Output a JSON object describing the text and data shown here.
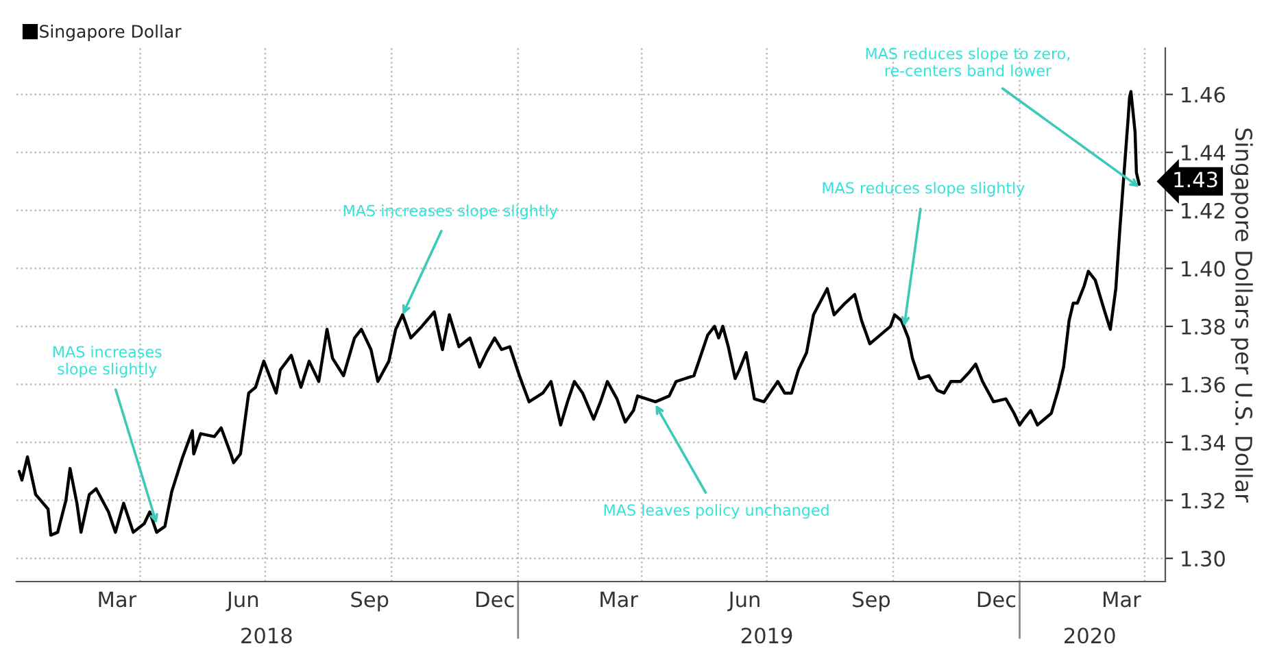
{
  "chart_data": {
    "type": "line",
    "x": [
      "2018-01-03",
      "2018-01-05",
      "2018-01-09",
      "2018-01-15",
      "2018-01-24",
      "2018-01-26",
      "2018-01-31",
      "2018-02-06",
      "2018-02-09",
      "2018-02-14",
      "2018-02-17",
      "2018-02-23",
      "2018-02-28",
      "2018-03-09",
      "2018-03-14",
      "2018-03-20",
      "2018-03-27",
      "2018-04-04",
      "2018-04-08",
      "2018-04-13",
      "2018-04-19",
      "2018-04-24",
      "2018-05-02",
      "2018-05-09",
      "2018-05-10",
      "2018-05-15",
      "2018-05-25",
      "2018-05-30",
      "2018-06-06",
      "2018-06-08",
      "2018-06-13",
      "2018-06-19",
      "2018-06-24",
      "2018-06-30",
      "2018-07-09",
      "2018-07-12",
      "2018-07-20",
      "2018-07-27",
      "2018-08-02",
      "2018-08-09",
      "2018-08-15",
      "2018-08-19",
      "2018-08-27",
      "2018-09-04",
      "2018-09-09",
      "2018-09-16",
      "2018-09-21",
      "2018-09-29",
      "2018-10-04",
      "2018-10-09",
      "2018-10-15",
      "2018-10-23",
      "2018-11-01",
      "2018-11-07",
      "2018-11-12",
      "2018-11-19",
      "2018-11-27",
      "2018-12-04",
      "2018-12-09",
      "2018-12-15",
      "2018-12-20",
      "2018-12-26",
      "2019-01-02",
      "2019-01-09",
      "2019-01-19",
      "2019-01-25",
      "2019-02-01",
      "2019-02-06",
      "2019-02-11",
      "2019-02-17",
      "2019-02-25",
      "2019-03-02",
      "2019-03-07",
      "2019-03-14",
      "2019-03-20",
      "2019-03-26",
      "2019-03-29",
      "2019-04-11",
      "2019-04-21",
      "2019-04-26",
      "2019-05-09",
      "2019-05-14",
      "2019-05-19",
      "2019-05-24",
      "2019-05-27",
      "2019-05-30",
      "2019-06-03",
      "2019-06-08",
      "2019-06-11",
      "2019-06-16",
      "2019-06-19",
      "2019-06-22",
      "2019-06-29",
      "2019-07-09",
      "2019-07-14",
      "2019-07-19",
      "2019-07-24",
      "2019-07-30",
      "2019-08-04",
      "2019-08-14",
      "2019-08-19",
      "2019-08-27",
      "2019-09-03",
      "2019-09-08",
      "2019-09-14",
      "2019-09-19",
      "2019-09-29",
      "2019-10-02",
      "2019-10-07",
      "2019-10-12",
      "2019-10-15",
      "2019-10-20",
      "2019-10-27",
      "2019-11-02",
      "2019-11-07",
      "2019-11-12",
      "2019-11-19",
      "2019-11-25",
      "2019-11-30",
      "2019-12-05",
      "2019-12-13",
      "2019-12-22",
      "2019-12-28",
      "2020-01-01",
      "2020-01-04",
      "2020-01-09",
      "2020-01-14",
      "2020-01-19",
      "2020-01-24",
      "2020-01-29",
      "2020-02-02",
      "2020-02-06",
      "2020-02-09",
      "2020-02-12",
      "2020-02-17",
      "2020-02-20",
      "2020-02-25",
      "2020-03-03",
      "2020-03-07",
      "2020-03-11",
      "2020-03-14",
      "2020-03-17",
      "2020-03-20",
      "2020-03-21",
      "2020-03-22",
      "2020-03-25",
      "2020-03-26",
      "2020-03-28"
    ],
    "series": [
      {
        "name": "Singapore Dollar",
        "color": "#000000",
        "values": [
          1.33,
          1.327,
          1.335,
          1.322,
          1.317,
          1.308,
          1.309,
          1.32,
          1.331,
          1.319,
          1.309,
          1.322,
          1.324,
          1.316,
          1.309,
          1.319,
          1.309,
          1.312,
          1.316,
          1.309,
          1.311,
          1.323,
          1.335,
          1.344,
          1.336,
          1.343,
          1.342,
          1.345,
          1.336,
          1.333,
          1.336,
          1.357,
          1.359,
          1.368,
          1.357,
          1.365,
          1.37,
          1.359,
          1.368,
          1.361,
          1.379,
          1.369,
          1.363,
          1.376,
          1.379,
          1.372,
          1.361,
          1.368,
          1.379,
          1.384,
          1.376,
          1.38,
          1.385,
          1.372,
          1.384,
          1.373,
          1.376,
          1.366,
          1.371,
          1.376,
          1.372,
          1.373,
          1.363,
          1.354,
          1.357,
          1.361,
          1.346,
          1.354,
          1.361,
          1.357,
          1.348,
          1.354,
          1.361,
          1.355,
          1.347,
          1.351,
          1.356,
          1.354,
          1.356,
          1.361,
          1.363,
          1.37,
          1.377,
          1.38,
          1.376,
          1.38,
          1.373,
          1.362,
          1.365,
          1.371,
          1.363,
          1.355,
          1.354,
          1.361,
          1.357,
          1.357,
          1.365,
          1.371,
          1.384,
          1.393,
          1.384,
          1.388,
          1.391,
          1.382,
          1.374,
          1.376,
          1.38,
          1.384,
          1.382,
          1.376,
          1.369,
          1.362,
          1.363,
          1.358,
          1.357,
          1.361,
          1.361,
          1.364,
          1.367,
          1.361,
          1.354,
          1.355,
          1.35,
          1.346,
          1.348,
          1.351,
          1.346,
          1.348,
          1.35,
          1.358,
          1.366,
          1.382,
          1.388,
          1.388,
          1.394,
          1.399,
          1.396,
          1.385,
          1.379,
          1.393,
          1.414,
          1.433,
          1.452,
          1.459,
          1.461,
          1.447,
          1.433,
          1.429
        ]
      }
    ],
    "xlim": [
      "2018-01-01",
      "2020-04-16"
    ],
    "xticks": [
      {
        "value": "2018-03-15",
        "label": "Mar"
      },
      {
        "value": "2018-06-15",
        "label": "Jun"
      },
      {
        "value": "2018-09-15",
        "label": "Sep"
      },
      {
        "value": "2018-12-15",
        "label": "Dec"
      },
      {
        "value": "2019-03-15",
        "label": "Mar"
      },
      {
        "value": "2019-06-15",
        "label": "Jun"
      },
      {
        "value": "2019-09-15",
        "label": "Sep"
      },
      {
        "value": "2019-12-15",
        "label": "Dec"
      },
      {
        "value": "2020-03-15",
        "label": "Mar"
      },
      {
        "value": "2018-04-01",
        "label": null
      },
      {
        "value": "2018-07-01",
        "label": null
      },
      {
        "value": "2018-10-01",
        "label": null
      },
      {
        "value": "2019-01-01",
        "label": null
      },
      {
        "value": "2019-04-01",
        "label": null
      },
      {
        "value": "2019-07-01",
        "label": null
      },
      {
        "value": "2019-10-01",
        "label": null
      },
      {
        "value": "2020-01-01",
        "label": null
      },
      {
        "value": "2020-04-01",
        "label": null
      }
    ],
    "x2lim": [
      "2018-01-01",
      "2020-04-16"
    ],
    "x2ticks": [
      {
        "value": "2018-07-02",
        "label": "2018"
      },
      {
        "value": "2019-07-01",
        "label": "2019"
      },
      {
        "value": "2020-02-21",
        "label": "2020"
      },
      {
        "value": "2019-01-01",
        "label": null
      },
      {
        "value": "2020-01-01",
        "label": null
      }
    ],
    "ylim": [
      1.292,
      1.476
    ],
    "yticks": [
      {
        "value": 1.3,
        "label": "1.30"
      },
      1.32,
      1.34,
      1.36,
      1.38,
      {
        "value": 1.4,
        "label": "1.40"
      },
      1.42,
      1.44,
      1.46
    ],
    "ylabel": "Singapore Dollars per U.S. Dollar",
    "grid": true,
    "legend": "top left",
    "marker": "none",
    "line_style": "solid",
    "annotations": [
      {
        "text": "MAS increases\nslope slightly",
        "x": "2018-04-13",
        "y": 1.312
      },
      {
        "text": "MAS increases slope slightly",
        "x": "2018-10-09",
        "y": 1.384
      },
      {
        "text": "MAS leaves policy unchanged",
        "x": "2019-04-11",
        "y": 1.353
      },
      {
        "text": "MAS reduces slope slightly",
        "x": "2019-10-09",
        "y": 1.38
      },
      {
        "text": "MAS reduces slope to zero,\nre-centers band lower",
        "x": "2020-03-28",
        "y": 1.428
      },
      {
        "text": "1.43",
        "x": "2020-03-28",
        "y": 1.43
      }
    ]
  }
}
